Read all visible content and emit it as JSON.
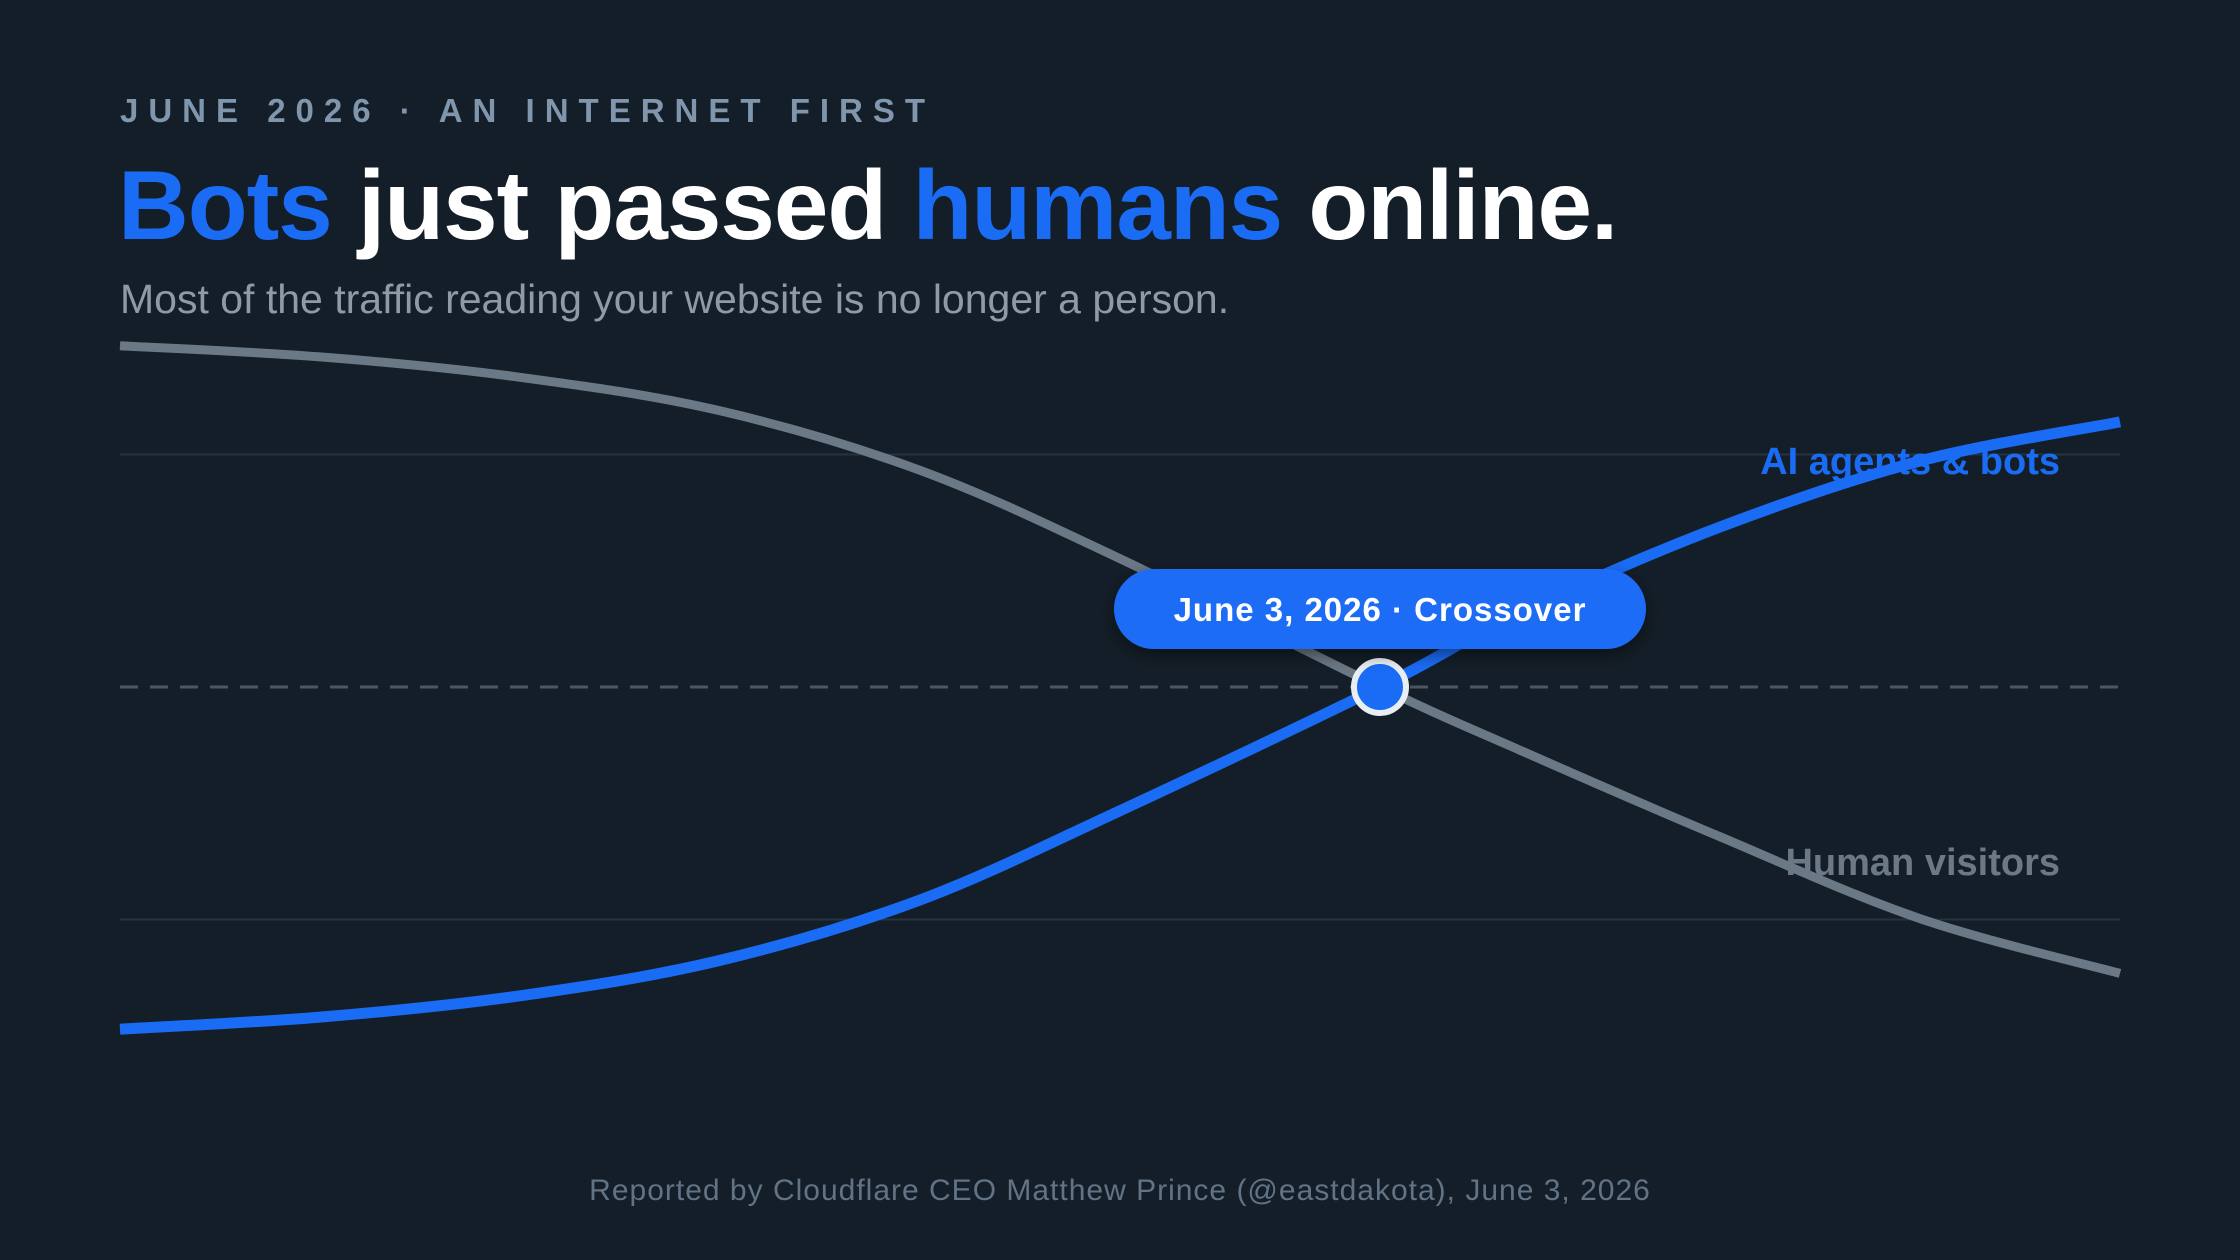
{
  "eyebrow": "JUNE 2026 · AN INTERNET FIRST",
  "headline": {
    "part1": "Bots",
    "part2": "just passed",
    "part3": "humans",
    "part4": "online."
  },
  "subtitle": "Most of the traffic reading your website is no longer a person.",
  "footer": "Reported by Cloudflare CEO Matthew Prince (@eastdakota), June 3, 2026",
  "colors": {
    "background": "#141e28",
    "accent": "#1a6cf5",
    "human_line": "#6b7885",
    "gridline": "#243241"
  },
  "chart_data": {
    "type": "line",
    "title": "",
    "xlabel": "",
    "ylabel": "",
    "axes_visible": false,
    "grid": "horizontal",
    "x": [
      0,
      0.1,
      0.2,
      0.3,
      0.4,
      0.5,
      0.63,
      0.7,
      0.8,
      0.9,
      1.0
    ],
    "ylim": [
      0,
      100
    ],
    "reference_line": 50,
    "series": [
      {
        "name": "AI agents & bots",
        "color": "#1a6cf5",
        "values": [
          13.2,
          14.5,
          16.8,
          20.6,
          27.1,
          36.7,
          50.0,
          58.0,
          67.2,
          74.3,
          78.5
        ]
      },
      {
        "name": "Human visitors",
        "color": "#6b7885",
        "values": [
          86.7,
          85.5,
          83.3,
          79.7,
          73.3,
          63.8,
          50.0,
          43.2,
          33.9,
          25.1,
          19.2
        ]
      }
    ],
    "annotation": {
      "label": "June 3, 2026 · Crossover",
      "x": 0.63,
      "y": 50
    }
  }
}
